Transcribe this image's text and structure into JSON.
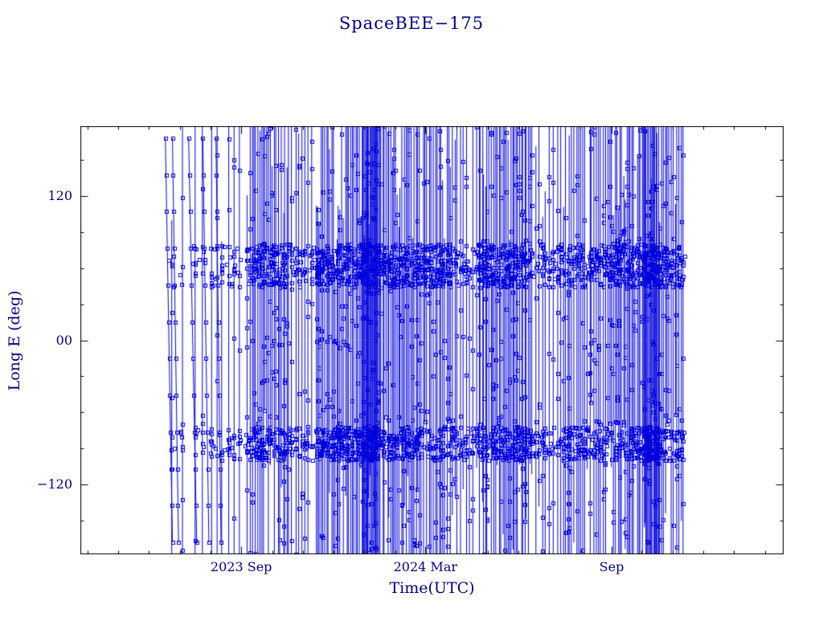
{
  "chart_data": {
    "type": "line",
    "title": "SpaceBEE−175",
    "xlabel": "Time(UTC)",
    "ylabel": "Long E (deg)",
    "x_epoch_label": "days relative to 2023 Sep 1",
    "xlim_days": [
      -159,
      536
    ],
    "ylim": [
      -178,
      178
    ],
    "x_ticks": [
      {
        "label": "2023 Sep",
        "t": 0
      },
      {
        "label": "2024 Mar",
        "t": 182
      },
      {
        "label": "Sep",
        "t": 366
      }
    ],
    "x_minor_tick_days": 30.44,
    "y_ticks": [
      {
        "label": "120",
        "value": 120
      },
      {
        "label": "00",
        "value": 0
      },
      {
        "label": "−120",
        "value": -120
      }
    ],
    "y_minor_tick_step": 30,
    "grid": false,
    "legend": "none",
    "marker": "open-square",
    "colors": {
      "data": "#0000DD",
      "text": "#00008B",
      "axis": "#000000",
      "background": "#FFFFFF"
    },
    "data_extent_days": [
      -75,
      438
    ],
    "series_pattern": {
      "description": "longitude sweeps wrapping at ±180 drawn as vertical lines with square markers; dwell bands near +62 and −86 deg",
      "seed": 175,
      "full_line_prob": 0.78,
      "markers_per_pass": [
        6,
        14
      ],
      "density_segments": [
        [
          -75,
          -32,
          0.1
        ],
        [
          -32,
          8,
          0.18
        ],
        [
          8,
          48,
          0.55
        ],
        [
          48,
          75,
          0.3
        ],
        [
          75,
          119,
          0.6
        ],
        [
          119,
          136,
          1.4
        ],
        [
          136,
          175,
          0.65
        ],
        [
          175,
          214,
          0.5
        ],
        [
          214,
          234,
          0.28
        ],
        [
          234,
          286,
          0.6
        ],
        [
          286,
          317,
          0.3
        ],
        [
          317,
          365,
          0.45
        ],
        [
          365,
          397,
          0.6
        ],
        [
          397,
          414,
          1.2
        ],
        [
          414,
          438,
          0.5
        ]
      ],
      "bands": [
        {
          "center": 62,
          "halfwidth": 18,
          "weight": 0.33
        },
        {
          "center": -86,
          "halfwidth": 14,
          "weight": 0.3
        }
      ],
      "trails": [
        {
          "t": -75,
          "dt": 7
        },
        {
          "t": -68,
          "dt": 6
        },
        {
          "t": -52,
          "dt": 8
        },
        {
          "t": -38,
          "dt": 6
        },
        {
          "t": -25,
          "dt": 5
        }
      ]
    }
  }
}
